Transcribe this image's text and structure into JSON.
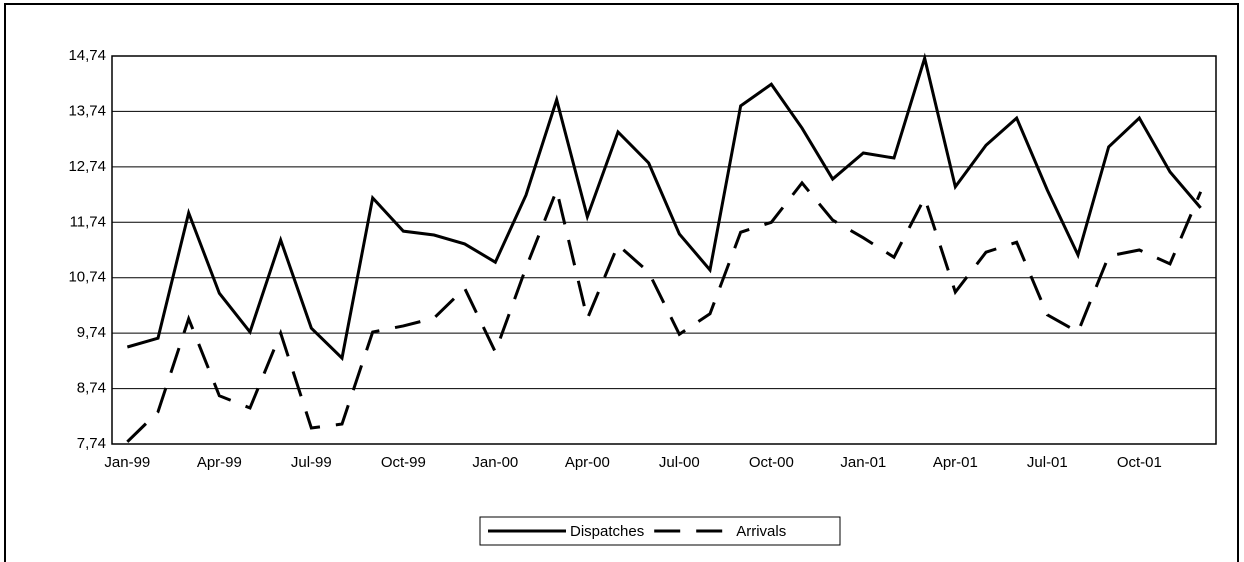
{
  "chart_data": {
    "type": "line",
    "categories": [
      "Jan-99",
      null,
      null,
      "Apr-99",
      null,
      null,
      "Jul-99",
      null,
      null,
      "Oct-99",
      null,
      null,
      "Jan-00",
      null,
      null,
      "Apr-00",
      null,
      null,
      "Jul-00",
      null,
      null,
      "Oct-00",
      null,
      null,
      "Jan-01",
      null,
      null,
      "Apr-01",
      null,
      null,
      "Jul-01",
      null,
      null,
      "Oct-01",
      null,
      null
    ],
    "series": [
      {
        "name": "Dispatches",
        "color": "#000000",
        "dash": "solid",
        "values": [
          9.49,
          9.65,
          11.91,
          10.46,
          9.76,
          11.42,
          9.83,
          9.29,
          12.18,
          11.58,
          11.51,
          11.35,
          11.02,
          12.23,
          13.95,
          11.84,
          13.37,
          12.81,
          11.53,
          10.88,
          13.84,
          14.23,
          13.44,
          12.52,
          12.99,
          12.9,
          14.7,
          12.38,
          13.13,
          13.62,
          12.32,
          11.15,
          13.1,
          13.62,
          12.65,
          12.0
        ]
      },
      {
        "name": "Arrivals",
        "color": "#000000",
        "dash": "dashed",
        "values": [
          7.78,
          8.32,
          10.0,
          8.61,
          8.39,
          9.74,
          8.03,
          8.1,
          9.76,
          9.87,
          10.01,
          10.55,
          9.4,
          10.92,
          12.32,
          10.0,
          11.33,
          10.84,
          9.72,
          10.09,
          11.56,
          11.74,
          12.45,
          11.78,
          11.46,
          11.11,
          12.18,
          10.48,
          11.2,
          11.38,
          10.07,
          9.76,
          11.13,
          11.24,
          10.99,
          12.29
        ]
      }
    ],
    "ylim": [
      7.74,
      14.74
    ],
    "yticks": [
      {
        "value": 7.74,
        "label": "7,74"
      },
      {
        "value": 8.74,
        "label": "8,74"
      },
      {
        "value": 9.74,
        "label": "9,74"
      },
      {
        "value": 10.74,
        "label": "10,74"
      },
      {
        "value": 11.74,
        "label": "11,74"
      },
      {
        "value": 12.74,
        "label": "12,74"
      },
      {
        "value": 13.74,
        "label": "13,74"
      },
      {
        "value": 14.74,
        "label": "14,74"
      }
    ],
    "grid": true,
    "legend": "bottom"
  }
}
